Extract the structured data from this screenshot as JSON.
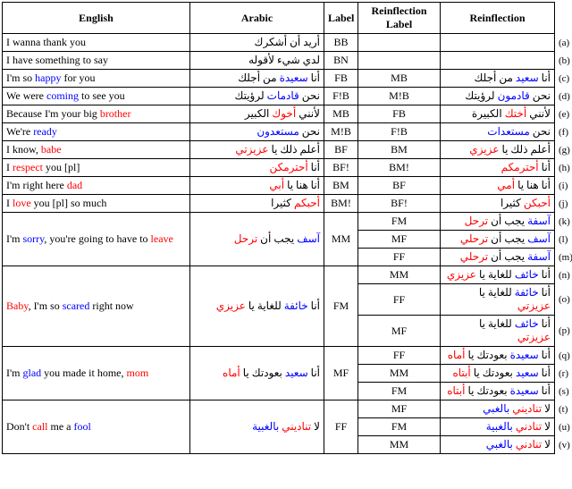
{
  "headers": {
    "english": "English",
    "arabic": "Arabic",
    "label": "Label",
    "reinf_label": "Reinflection Label",
    "reinf": "Reinflection"
  },
  "rows": [
    {
      "letter": "(a)",
      "eng": [
        {
          "t": "I wanna thank you"
        }
      ],
      "ar": [
        {
          "t": "أريد أن أشكرك"
        }
      ],
      "lbl": "BB",
      "rlbl": "",
      "reinf": []
    },
    {
      "letter": "(b)",
      "eng": [
        {
          "t": "I have something to say"
        }
      ],
      "ar": [
        {
          "t": "لدي شيء لأقوله"
        }
      ],
      "lbl": "BN",
      "rlbl": "",
      "reinf": []
    },
    {
      "letter": "(c)",
      "sec": true,
      "eng": [
        {
          "t": "I'm so "
        },
        {
          "t": "happy",
          "c": "blue"
        },
        {
          "t": " for you"
        }
      ],
      "ar": [
        {
          "t": "أنا "
        },
        {
          "t": "سعيدة",
          "c": "blue"
        },
        {
          "t": " من أجلك"
        }
      ],
      "lbl": "FB",
      "rlbl": "MB",
      "reinf": [
        {
          "t": "أنا "
        },
        {
          "t": "سعيد",
          "c": "blue"
        },
        {
          "t": " من أجلك"
        }
      ]
    },
    {
      "letter": "(d)",
      "eng": [
        {
          "t": "We were "
        },
        {
          "t": "coming",
          "c": "blue"
        },
        {
          "t": " to see you"
        }
      ],
      "ar": [
        {
          "t": "نحن "
        },
        {
          "t": "قادمات",
          "c": "blue"
        },
        {
          "t": " لرؤيتك"
        }
      ],
      "lbl": "F!B",
      "rlbl": "M!B",
      "reinf": [
        {
          "t": "نحن "
        },
        {
          "t": "قادمون",
          "c": "blue"
        },
        {
          "t": " لرؤيتك"
        }
      ]
    },
    {
      "letter": "(e)",
      "eng": [
        {
          "t": "Because I'm your big "
        },
        {
          "t": "brother",
          "c": "red"
        }
      ],
      "ar": [
        {
          "t": "لأنني "
        },
        {
          "t": "أخوك",
          "c": "red"
        },
        {
          "t": " الكبير"
        }
      ],
      "lbl": "MB",
      "rlbl": "FB",
      "reinf": [
        {
          "t": "لأنني "
        },
        {
          "t": "أختك",
          "c": "red"
        },
        {
          "t": " الكبيرة"
        }
      ]
    },
    {
      "letter": "(f)",
      "eng": [
        {
          "t": "We're "
        },
        {
          "t": "ready",
          "c": "blue"
        }
      ],
      "ar": [
        {
          "t": "نحن "
        },
        {
          "t": "مستعدون",
          "c": "blue"
        }
      ],
      "lbl": "M!B",
      "rlbl": "F!B",
      "reinf": [
        {
          "t": "نحن "
        },
        {
          "t": "مستعدات",
          "c": "blue"
        }
      ]
    },
    {
      "letter": "(g)",
      "sec": true,
      "eng": [
        {
          "t": "I know, "
        },
        {
          "t": "babe",
          "c": "red"
        }
      ],
      "ar": [
        {
          "t": "أعلم ذلك يا "
        },
        {
          "t": "عزيزتي",
          "c": "red"
        }
      ],
      "lbl": "BF",
      "rlbl": "BM",
      "reinf": [
        {
          "t": "أعلم ذلك يا "
        },
        {
          "t": "عزيزي",
          "c": "red"
        }
      ]
    },
    {
      "letter": "(h)",
      "eng": [
        {
          "t": "I "
        },
        {
          "t": "respect",
          "c": "red"
        },
        {
          "t": " you [pl]"
        }
      ],
      "ar": [
        {
          "t": "أنا "
        },
        {
          "t": "أحترمكن",
          "c": "red"
        }
      ],
      "lbl": "BF!",
      "rlbl": "BM!",
      "reinf": [
        {
          "t": "أنا "
        },
        {
          "t": "أحترمكم",
          "c": "red"
        }
      ]
    },
    {
      "letter": "(i)",
      "eng": [
        {
          "t": "I'm right here "
        },
        {
          "t": "dad",
          "c": "red"
        }
      ],
      "ar": [
        {
          "t": "أنا هنا يا "
        },
        {
          "t": "أبي",
          "c": "red"
        }
      ],
      "lbl": "BM",
      "rlbl": "BF",
      "reinf": [
        {
          "t": "أنا هنا يا "
        },
        {
          "t": "أمي",
          "c": "red"
        }
      ]
    },
    {
      "letter": "(j)",
      "eng": [
        {
          "t": "I "
        },
        {
          "t": "love",
          "c": "red"
        },
        {
          "t": " you [pl] so much"
        }
      ],
      "ar": [
        {
          "t": "أحبكم",
          "c": "red"
        },
        {
          "t": " كثيرا"
        }
      ],
      "lbl": "BM!",
      "rlbl": "BF!",
      "reinf": [
        {
          "t": "أحبكن",
          "c": "red"
        },
        {
          "t": " كثيرا"
        }
      ]
    },
    {
      "letter": "(k)",
      "sec": true,
      "group_start": 3,
      "eng": [
        {
          "t": "I'm "
        },
        {
          "t": "sorry",
          "c": "blue"
        },
        {
          "t": ", you're going to have to "
        },
        {
          "t": "leave",
          "c": "red"
        }
      ],
      "ar": [
        {
          "t": "آسف",
          "c": "blue"
        },
        {
          "t": " يجب أن "
        },
        {
          "t": "ترحل",
          "c": "red"
        }
      ],
      "lbl": "MM",
      "rlbl": "FM",
      "reinf": [
        {
          "t": "آسفة",
          "c": "blue"
        },
        {
          "t": " يجب أن "
        },
        {
          "t": "ترحل",
          "c": "red"
        }
      ]
    },
    {
      "letter": "(l)",
      "rlbl": "MF",
      "reinf": [
        {
          "t": "آسف",
          "c": "blue"
        },
        {
          "t": " يجب أن "
        },
        {
          "t": "ترحلي",
          "c": "red"
        }
      ]
    },
    {
      "letter": "(m)",
      "rlbl": "FF",
      "reinf": [
        {
          "t": "آسفة",
          "c": "blue"
        },
        {
          "t": " يجب أن "
        },
        {
          "t": "ترحلي",
          "c": "red"
        }
      ]
    },
    {
      "letter": "(n)",
      "group_start": 3,
      "eng": [
        {
          "t": "Baby",
          "c": "red"
        },
        {
          "t": ", I'm so "
        },
        {
          "t": "scared",
          "c": "blue"
        },
        {
          "t": " right now"
        }
      ],
      "ar": [
        {
          "t": "أنا "
        },
        {
          "t": "خائفة",
          "c": "blue"
        },
        {
          "t": " للغاية يا "
        },
        {
          "t": "عزيزي",
          "c": "red"
        }
      ],
      "lbl": "FM",
      "rlbl": "MM",
      "reinf": [
        {
          "t": "أنا "
        },
        {
          "t": "خائف",
          "c": "blue"
        },
        {
          "t": " للغاية يا "
        },
        {
          "t": "عزيزي",
          "c": "red"
        }
      ]
    },
    {
      "letter": "(o)",
      "rlbl": "FF",
      "reinf": [
        {
          "t": "أنا "
        },
        {
          "t": "خائفة",
          "c": "blue"
        },
        {
          "t": " للغاية يا "
        },
        {
          "t": "عزيزتي",
          "c": "red"
        }
      ]
    },
    {
      "letter": "(p)",
      "rlbl": "MF",
      "reinf": [
        {
          "t": "أنا "
        },
        {
          "t": "خائف",
          "c": "blue"
        },
        {
          "t": " للغاية يا "
        },
        {
          "t": "عزيزتي",
          "c": "red"
        }
      ]
    },
    {
      "letter": "(q)",
      "group_start": 3,
      "eng": [
        {
          "t": "I'm "
        },
        {
          "t": "glad",
          "c": "blue"
        },
        {
          "t": " you made it home, "
        },
        {
          "t": "mom",
          "c": "red"
        }
      ],
      "ar": [
        {
          "t": "أنا "
        },
        {
          "t": "سعيد",
          "c": "blue"
        },
        {
          "t": " بعودتك يا "
        },
        {
          "t": "أماه",
          "c": "red"
        }
      ],
      "lbl": "MF",
      "rlbl": "FF",
      "reinf": [
        {
          "t": "أنا "
        },
        {
          "t": "سعيدة",
          "c": "blue"
        },
        {
          "t": " بعودتك يا "
        },
        {
          "t": "أماه",
          "c": "red"
        }
      ]
    },
    {
      "letter": "(r)",
      "rlbl": "MM",
      "reinf": [
        {
          "t": "أنا "
        },
        {
          "t": "سعيد",
          "c": "blue"
        },
        {
          "t": " بعودتك يا "
        },
        {
          "t": "أبتاه",
          "c": "red"
        }
      ]
    },
    {
      "letter": "(s)",
      "rlbl": "FM",
      "reinf": [
        {
          "t": "أنا "
        },
        {
          "t": "سعيدة",
          "c": "blue"
        },
        {
          "t": " بعودتك يا "
        },
        {
          "t": "أبتاه",
          "c": "red"
        }
      ]
    },
    {
      "letter": "(t)",
      "group_start": 3,
      "eng": [
        {
          "t": "Don't "
        },
        {
          "t": "call",
          "c": "red"
        },
        {
          "t": " me a "
        },
        {
          "t": "fool",
          "c": "blue"
        }
      ],
      "ar": [
        {
          "t": "لا "
        },
        {
          "t": "تناديني",
          "c": "red"
        },
        {
          "t": " بالغبية",
          "c": "blue"
        }
      ],
      "lbl": "FF",
      "rlbl": "MF",
      "reinf": [
        {
          "t": "لا "
        },
        {
          "t": "تناديني",
          "c": "red"
        },
        {
          "t": " بالغبي",
          "c": "blue"
        }
      ]
    },
    {
      "letter": "(u)",
      "rlbl": "FM",
      "reinf": [
        {
          "t": "لا "
        },
        {
          "t": "تنادني",
          "c": "red"
        },
        {
          "t": " بالغبية",
          "c": "blue"
        }
      ]
    },
    {
      "letter": "(v)",
      "last": true,
      "rlbl": "MM",
      "reinf": [
        {
          "t": "لا "
        },
        {
          "t": "تنادني",
          "c": "red"
        },
        {
          "t": " بالغبي",
          "c": "blue"
        }
      ]
    }
  ]
}
